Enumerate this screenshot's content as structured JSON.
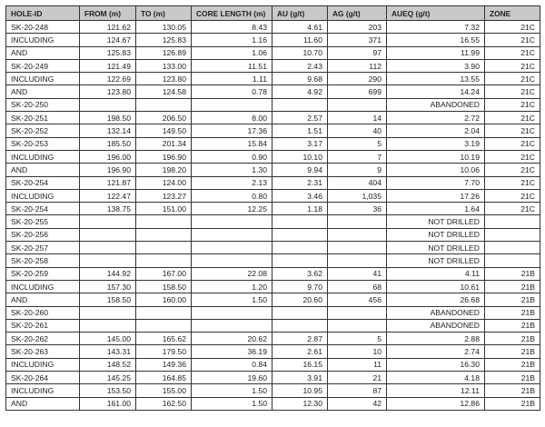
{
  "headers": [
    "HOLE-ID",
    "FROM (m)",
    "TO (m)",
    "CORE LENGTH (m)",
    "AU (g/t)",
    "AG (g/t)",
    "AUEQ (g/t)",
    "ZONE"
  ],
  "rows": [
    [
      "SK-20-248",
      "121.62",
      "130.05",
      "8.43",
      "4.61",
      "203",
      "7.32",
      "21C"
    ],
    [
      "INCLUDING",
      "124.67",
      "125.83",
      "1.16",
      "11.60",
      "371",
      "16.55",
      "21C"
    ],
    [
      "AND",
      "125.83",
      "126.89",
      "1.06",
      "10.70",
      "97",
      "11.99",
      "21C"
    ],
    [
      "SK-20-249",
      "121.49",
      "133.00",
      "11.51",
      "2.43",
      "112",
      "3.90",
      "21C"
    ],
    [
      "INCLUDING",
      "122.69",
      "123.80",
      "1.11",
      "9.68",
      "290",
      "13.55",
      "21C"
    ],
    [
      "AND",
      "123.80",
      "124.58",
      "0.78",
      "4.92",
      "699",
      "14.24",
      "21C"
    ],
    [
      "SK-20-250",
      "",
      "",
      "",
      "",
      "",
      "ABANDONED",
      "21C"
    ],
    [
      "SK-20-251",
      "198.50",
      "206.50",
      "8.00",
      "2.57",
      "14",
      "2.72",
      "21C"
    ],
    [
      "SK-20-252",
      "132.14",
      "149.50",
      "17.36",
      "1.51",
      "40",
      "2.04",
      "21C"
    ],
    [
      "SK-20-253",
      "185.50",
      "201.34",
      "15.84",
      "3.17",
      "5",
      "3.19",
      "21C"
    ],
    [
      "INCLUDING",
      "196.00",
      "196.90",
      "0.90",
      "10.10",
      "7",
      "10.19",
      "21C"
    ],
    [
      "AND",
      "196.90",
      "198.20",
      "1.30",
      "9.94",
      "9",
      "10.06",
      "21C"
    ],
    [
      "SK-20-254",
      "121.87",
      "124.00",
      "2.13",
      "2.31",
      "404",
      "7.70",
      "21C"
    ],
    [
      "INCLUDING",
      "122.47",
      "123.27",
      "0.80",
      "3.46",
      "1,035",
      "17.26",
      "21C"
    ],
    [
      "SK-20-254",
      "138.75",
      "151.00",
      "12.25",
      "1.18",
      "36",
      "1.64",
      "21C"
    ],
    [
      "SK-20-255",
      "",
      "",
      "",
      "",
      "",
      "NOT DRILLED",
      ""
    ],
    [
      "SK-20-256",
      "",
      "",
      "",
      "",
      "",
      "NOT DRILLED",
      ""
    ],
    [
      "SK-20-257",
      "",
      "",
      "",
      "",
      "",
      "NOT DRILLED",
      ""
    ],
    [
      "SK-20-258",
      "",
      "",
      "",
      "",
      "",
      "NOT DRILLED",
      ""
    ],
    [
      "SK-20-259",
      "144.92",
      "167.00",
      "22.08",
      "3.62",
      "41",
      "4.11",
      "21B"
    ],
    [
      "INCLUDING",
      "157.30",
      "158.50",
      "1.20",
      "9.70",
      "68",
      "10.61",
      "21B"
    ],
    [
      "AND",
      "158.50",
      "160.00",
      "1.50",
      "20.60",
      "456",
      "26.68",
      "21B"
    ],
    [
      "SK-20-260",
      "",
      "",
      "",
      "",
      "",
      "ABANDONED",
      "21B"
    ],
    [
      "SK-20-261",
      "",
      "",
      "",
      "",
      "",
      "ABANDONED",
      "21B"
    ],
    [
      "SK-20-262",
      "145.00",
      "165.62",
      "20.62",
      "2.87",
      "5",
      "2.88",
      "21B"
    ],
    [
      "SK-20-263",
      "143.31",
      "179.50",
      "36.19",
      "2.61",
      "10",
      "2.74",
      "21B"
    ],
    [
      "INCLUDING",
      "148.52",
      "149.36",
      "0.84",
      "16.15",
      "11",
      "16.30",
      "21B"
    ],
    [
      "SK-20-264",
      "145.25",
      "164.85",
      "19.60",
      "3.91",
      "21",
      "4.18",
      "21B"
    ],
    [
      "INCLUDING",
      "153.50",
      "155.00",
      "1.50",
      "10.95",
      "87",
      "12.11",
      "21B"
    ],
    [
      "AND",
      "161.00",
      "162.50",
      "1.50",
      "12.30",
      "42",
      "12.86",
      "21B"
    ]
  ]
}
